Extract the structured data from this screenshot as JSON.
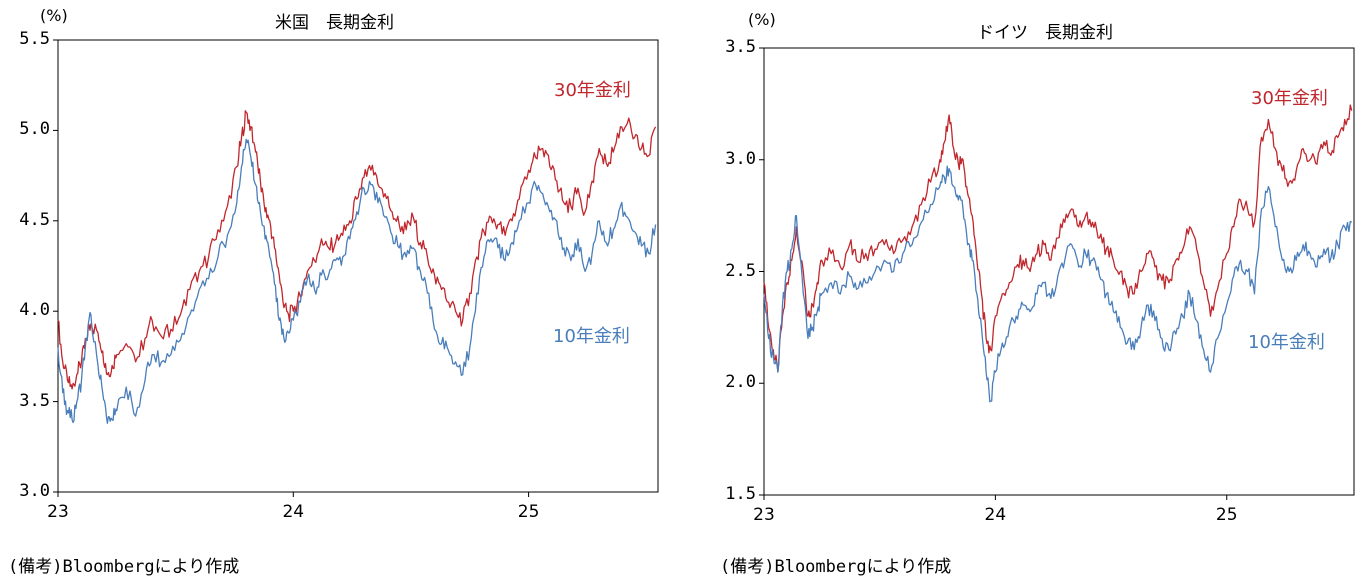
{
  "chart_data": [
    {
      "type": "line",
      "title": "米国　長期金利",
      "unit_label": "(%)",
      "ylim": [
        3.0,
        5.5
      ],
      "yticks": [
        "3.0",
        "3.5",
        "4.0",
        "4.5",
        "5.0",
        "5.5"
      ],
      "xlim": [
        2023.0,
        2025.55
      ],
      "xticks": [
        "23",
        "24",
        "25"
      ],
      "grid": false,
      "source_note": "(備考)Bloombergにより作成",
      "series": [
        {
          "name": "30年金利",
          "color": "#c0272d",
          "x": [
            2023.0,
            2023.02,
            2023.04,
            2023.06,
            2023.08,
            2023.1,
            2023.12,
            2023.14,
            2023.17,
            2023.19,
            2023.21,
            2023.23,
            2023.25,
            2023.29,
            2023.33,
            2023.37,
            2023.4,
            2023.44,
            2023.48,
            2023.52,
            2023.56,
            2023.6,
            2023.64,
            2023.68,
            2023.72,
            2023.76,
            2023.78,
            2023.8,
            2023.82,
            2023.84,
            2023.86,
            2023.88,
            2023.9,
            2023.92,
            2023.94,
            2023.96,
            2023.98,
            2024.0,
            2024.03,
            2024.06,
            2024.09,
            2024.12,
            2024.15,
            2024.18,
            2024.21,
            2024.24,
            2024.27,
            2024.3,
            2024.33,
            2024.36,
            2024.39,
            2024.42,
            2024.45,
            2024.48,
            2024.51,
            2024.54,
            2024.57,
            2024.6,
            2024.63,
            2024.66,
            2024.69,
            2024.72,
            2024.75,
            2024.78,
            2024.81,
            2024.84,
            2024.87,
            2024.9,
            2024.93,
            2024.96,
            2025.0,
            2025.03,
            2025.06,
            2025.09,
            2025.12,
            2025.15,
            2025.18,
            2025.21,
            2025.24,
            2025.27,
            2025.3,
            2025.33,
            2025.36,
            2025.39,
            2025.42,
            2025.45,
            2025.48,
            2025.51,
            2025.54
          ],
          "values": [
            3.95,
            3.72,
            3.62,
            3.57,
            3.65,
            3.72,
            3.85,
            3.93,
            3.88,
            3.78,
            3.65,
            3.7,
            3.76,
            3.82,
            3.72,
            3.85,
            3.95,
            3.86,
            3.9,
            3.98,
            4.12,
            4.22,
            4.3,
            4.45,
            4.58,
            4.8,
            4.96,
            5.1,
            5.02,
            4.88,
            4.72,
            4.55,
            4.5,
            4.35,
            4.2,
            4.02,
            3.98,
            4.0,
            4.08,
            4.22,
            4.28,
            4.4,
            4.35,
            4.38,
            4.42,
            4.5,
            4.62,
            4.74,
            4.78,
            4.7,
            4.65,
            4.55,
            4.48,
            4.45,
            4.52,
            4.38,
            4.3,
            4.2,
            4.12,
            4.05,
            4.0,
            3.95,
            4.1,
            4.3,
            4.44,
            4.52,
            4.48,
            4.42,
            4.5,
            4.62,
            4.78,
            4.85,
            4.9,
            4.8,
            4.72,
            4.6,
            4.58,
            4.68,
            4.55,
            4.72,
            4.9,
            4.82,
            4.88,
            5.02,
            5.04,
            4.96,
            4.9,
            4.86,
            5.02
          ]
        },
        {
          "name": "10年金利",
          "color": "#4a7ebb",
          "x": [
            2023.0,
            2023.02,
            2023.04,
            2023.06,
            2023.08,
            2023.1,
            2023.12,
            2023.14,
            2023.17,
            2023.19,
            2023.21,
            2023.23,
            2023.25,
            2023.29,
            2023.33,
            2023.37,
            2023.4,
            2023.44,
            2023.48,
            2023.52,
            2023.56,
            2023.6,
            2023.64,
            2023.68,
            2023.72,
            2023.76,
            2023.78,
            2023.8,
            2023.82,
            2023.84,
            2023.86,
            2023.88,
            2023.9,
            2023.92,
            2023.94,
            2023.96,
            2023.98,
            2024.0,
            2024.03,
            2024.06,
            2024.09,
            2024.12,
            2024.15,
            2024.18,
            2024.21,
            2024.24,
            2024.27,
            2024.3,
            2024.33,
            2024.36,
            2024.39,
            2024.42,
            2024.45,
            2024.48,
            2024.51,
            2024.54,
            2024.57,
            2024.6,
            2024.63,
            2024.66,
            2024.69,
            2024.72,
            2024.75,
            2024.78,
            2024.81,
            2024.84,
            2024.87,
            2024.9,
            2024.93,
            2024.96,
            2025.0,
            2025.03,
            2025.06,
            2025.09,
            2025.12,
            2025.15,
            2025.18,
            2025.21,
            2025.24,
            2025.27,
            2025.3,
            2025.33,
            2025.36,
            2025.39,
            2025.42,
            2025.45,
            2025.48,
            2025.51,
            2025.54
          ],
          "values": [
            3.8,
            3.55,
            3.45,
            3.4,
            3.5,
            3.62,
            3.85,
            3.98,
            3.7,
            3.55,
            3.38,
            3.4,
            3.45,
            3.58,
            3.42,
            3.62,
            3.76,
            3.72,
            3.76,
            3.84,
            3.98,
            4.12,
            4.18,
            4.3,
            4.42,
            4.6,
            4.8,
            4.95,
            4.85,
            4.7,
            4.55,
            4.4,
            4.3,
            4.15,
            3.95,
            3.85,
            3.88,
            3.95,
            4.05,
            4.18,
            4.12,
            4.2,
            4.2,
            4.28,
            4.3,
            4.4,
            4.55,
            4.68,
            4.7,
            4.6,
            4.52,
            4.42,
            4.35,
            4.3,
            4.35,
            4.22,
            4.1,
            3.9,
            3.82,
            3.78,
            3.72,
            3.65,
            3.8,
            4.1,
            4.3,
            4.4,
            4.35,
            4.28,
            4.38,
            4.5,
            4.6,
            4.7,
            4.65,
            4.55,
            4.5,
            4.35,
            4.28,
            4.4,
            4.22,
            4.32,
            4.5,
            4.38,
            4.45,
            4.58,
            4.52,
            4.44,
            4.36,
            4.32,
            4.48
          ]
        }
      ]
    },
    {
      "type": "line",
      "title": "ドイツ　長期金利",
      "unit_label": "(%)",
      "ylim": [
        1.5,
        3.5
      ],
      "yticks": [
        "1.5",
        "2.0",
        "2.5",
        "3.0",
        "3.5"
      ],
      "xlim": [
        2023.0,
        2025.55
      ],
      "xticks": [
        "23",
        "24",
        "25"
      ],
      "grid": false,
      "source_note": "(備考)Bloombergにより作成",
      "series": [
        {
          "name": "30年金利",
          "color": "#c0272d",
          "x": [
            2023.0,
            2023.02,
            2023.04,
            2023.06,
            2023.08,
            2023.1,
            2023.12,
            2023.14,
            2023.17,
            2023.19,
            2023.21,
            2023.23,
            2023.25,
            2023.29,
            2023.33,
            2023.37,
            2023.4,
            2023.44,
            2023.48,
            2023.52,
            2023.56,
            2023.6,
            2023.64,
            2023.68,
            2023.72,
            2023.76,
            2023.78,
            2023.8,
            2023.82,
            2023.84,
            2023.86,
            2023.88,
            2023.9,
            2023.92,
            2023.94,
            2023.96,
            2023.98,
            2024.0,
            2024.03,
            2024.06,
            2024.09,
            2024.12,
            2024.15,
            2024.18,
            2024.21,
            2024.24,
            2024.27,
            2024.3,
            2024.33,
            2024.36,
            2024.39,
            2024.42,
            2024.45,
            2024.48,
            2024.51,
            2024.54,
            2024.57,
            2024.6,
            2024.63,
            2024.66,
            2024.69,
            2024.72,
            2024.75,
            2024.78,
            2024.81,
            2024.84,
            2024.87,
            2024.9,
            2024.93,
            2024.96,
            2025.0,
            2025.03,
            2025.06,
            2025.09,
            2025.12,
            2025.15,
            2025.18,
            2025.21,
            2025.24,
            2025.27,
            2025.3,
            2025.33,
            2025.36,
            2025.39,
            2025.42,
            2025.45,
            2025.48,
            2025.51,
            2025.54
          ],
          "values": [
            2.45,
            2.25,
            2.15,
            2.05,
            2.3,
            2.45,
            2.55,
            2.7,
            2.5,
            2.3,
            2.35,
            2.45,
            2.55,
            2.58,
            2.52,
            2.62,
            2.55,
            2.58,
            2.6,
            2.62,
            2.58,
            2.64,
            2.7,
            2.8,
            2.9,
            3.0,
            3.08,
            3.2,
            3.05,
            2.98,
            3.0,
            2.85,
            2.75,
            2.55,
            2.4,
            2.2,
            2.15,
            2.3,
            2.4,
            2.45,
            2.52,
            2.55,
            2.5,
            2.58,
            2.62,
            2.55,
            2.65,
            2.72,
            2.78,
            2.7,
            2.75,
            2.72,
            2.65,
            2.6,
            2.55,
            2.5,
            2.42,
            2.4,
            2.5,
            2.58,
            2.52,
            2.46,
            2.45,
            2.55,
            2.6,
            2.7,
            2.6,
            2.45,
            2.3,
            2.42,
            2.58,
            2.7,
            2.82,
            2.78,
            2.72,
            3.1,
            3.18,
            3.05,
            2.95,
            2.9,
            2.95,
            3.05,
            3.0,
            2.98,
            3.08,
            3.02,
            3.1,
            3.18,
            3.22
          ]
        },
        {
          "name": "10年金利",
          "color": "#4a7ebb",
          "x": [
            2023.0,
            2023.02,
            2023.04,
            2023.06,
            2023.08,
            2023.1,
            2023.12,
            2023.14,
            2023.17,
            2023.19,
            2023.21,
            2023.23,
            2023.25,
            2023.29,
            2023.33,
            2023.37,
            2023.4,
            2023.44,
            2023.48,
            2023.52,
            2023.56,
            2023.6,
            2023.64,
            2023.68,
            2023.72,
            2023.76,
            2023.78,
            2023.8,
            2023.82,
            2023.84,
            2023.86,
            2023.88,
            2023.9,
            2023.92,
            2023.94,
            2023.96,
            2023.98,
            2024.0,
            2024.03,
            2024.06,
            2024.09,
            2024.12,
            2024.15,
            2024.18,
            2024.21,
            2024.24,
            2024.27,
            2024.3,
            2024.33,
            2024.36,
            2024.39,
            2024.42,
            2024.45,
            2024.48,
            2024.51,
            2024.54,
            2024.57,
            2024.6,
            2024.63,
            2024.66,
            2024.69,
            2024.72,
            2024.75,
            2024.78,
            2024.81,
            2024.84,
            2024.87,
            2024.9,
            2024.93,
            2024.96,
            2025.0,
            2025.03,
            2025.06,
            2025.09,
            2025.12,
            2025.15,
            2025.18,
            2025.21,
            2025.24,
            2025.27,
            2025.3,
            2025.33,
            2025.36,
            2025.39,
            2025.42,
            2025.45,
            2025.48,
            2025.51,
            2025.54
          ],
          "values": [
            2.4,
            2.2,
            2.12,
            2.05,
            2.35,
            2.5,
            2.6,
            2.75,
            2.4,
            2.2,
            2.25,
            2.32,
            2.4,
            2.45,
            2.4,
            2.48,
            2.42,
            2.45,
            2.5,
            2.55,
            2.5,
            2.58,
            2.62,
            2.72,
            2.8,
            2.88,
            2.92,
            2.96,
            2.88,
            2.82,
            2.78,
            2.62,
            2.55,
            2.4,
            2.25,
            2.05,
            1.92,
            2.05,
            2.18,
            2.25,
            2.3,
            2.35,
            2.32,
            2.4,
            2.45,
            2.38,
            2.48,
            2.55,
            2.62,
            2.52,
            2.58,
            2.55,
            2.48,
            2.4,
            2.32,
            2.25,
            2.18,
            2.15,
            2.25,
            2.35,
            2.28,
            2.2,
            2.15,
            2.22,
            2.3,
            2.4,
            2.28,
            2.15,
            2.05,
            2.2,
            2.35,
            2.48,
            2.55,
            2.5,
            2.4,
            2.78,
            2.88,
            2.7,
            2.55,
            2.5,
            2.55,
            2.62,
            2.58,
            2.52,
            2.6,
            2.56,
            2.62,
            2.7,
            2.72
          ]
        }
      ]
    }
  ]
}
